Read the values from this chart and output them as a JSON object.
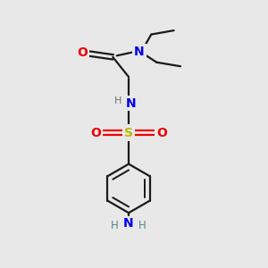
{
  "background_color": "#e8e8e8",
  "bond_color": "#1a1a1a",
  "N_color": "#0000ee",
  "O_color": "#ee0000",
  "S_color": "#bbbb00",
  "NH2_N_color": "#0000ee",
  "NH2_H_color": "#558888",
  "NH_H_color": "#707070",
  "line_width": 1.6,
  "figsize": [
    3.0,
    3.0
  ],
  "dpi": 100,
  "xlim": [
    0,
    10
  ],
  "ylim": [
    0,
    10
  ]
}
